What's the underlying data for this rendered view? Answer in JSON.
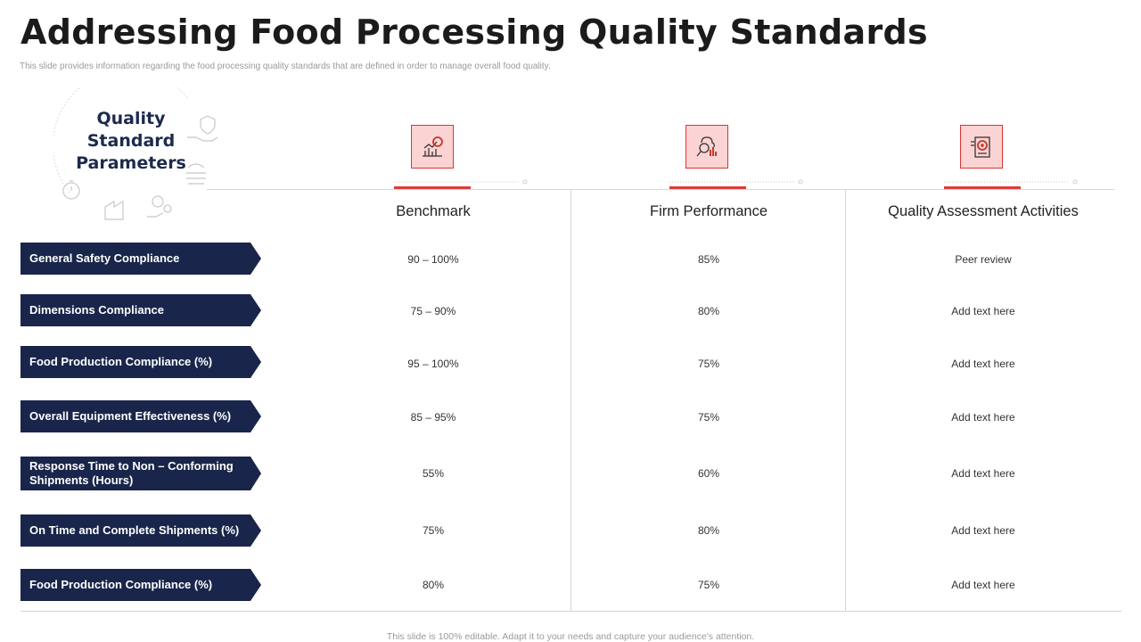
{
  "header": {
    "title": "Addressing Food Processing Quality Standards",
    "subtitle": "This slide provides information regarding the food processing quality standards that are defined in order to manage overall food quality."
  },
  "parameters_block": {
    "title_line1": "Quality",
    "title_line2": "Standard",
    "title_line3": "Parameters"
  },
  "columns": [
    {
      "label": "Benchmark",
      "icon": "chart-search-icon"
    },
    {
      "label": "Firm Performance",
      "icon": "brain-analytics-icon"
    },
    {
      "label": "Quality Assessment  Activities",
      "icon": "document-target-icon"
    }
  ],
  "rows": [
    {
      "label": "General Safety Compliance",
      "benchmark": "90 – 100%",
      "performance": "85%",
      "activity": "Peer review"
    },
    {
      "label": "Dimensions Compliance",
      "benchmark": "75 – 90%",
      "performance": "80%",
      "activity": "Add text here"
    },
    {
      "label": "Food Production Compliance (%)",
      "benchmark": "95 – 100%",
      "performance": "75%",
      "activity": "Add text here"
    },
    {
      "label": "Overall Equipment Effectiveness  (%)",
      "benchmark": "85 – 95%",
      "performance": "75%",
      "activity": "Add text here"
    },
    {
      "label": "Response  Time to Non – Conforming  Shipments (Hours)",
      "benchmark": "55%",
      "performance": "60%",
      "activity": "Add text here"
    },
    {
      "label": "On Time and Complete Shipments (%)",
      "benchmark": "75%",
      "performance": "80%",
      "activity": "Add text here"
    },
    {
      "label": "Food Production Compliance (%)",
      "benchmark": "80%",
      "performance": "75%",
      "activity": "Add text here"
    }
  ],
  "footer": "This slide is 100% editable.  Adapt it to your needs and capture your audience's attention.",
  "colors": {
    "navy": "#19254a",
    "accent_red": "#e03a3a",
    "icon_bg": "#fcd3d3"
  }
}
